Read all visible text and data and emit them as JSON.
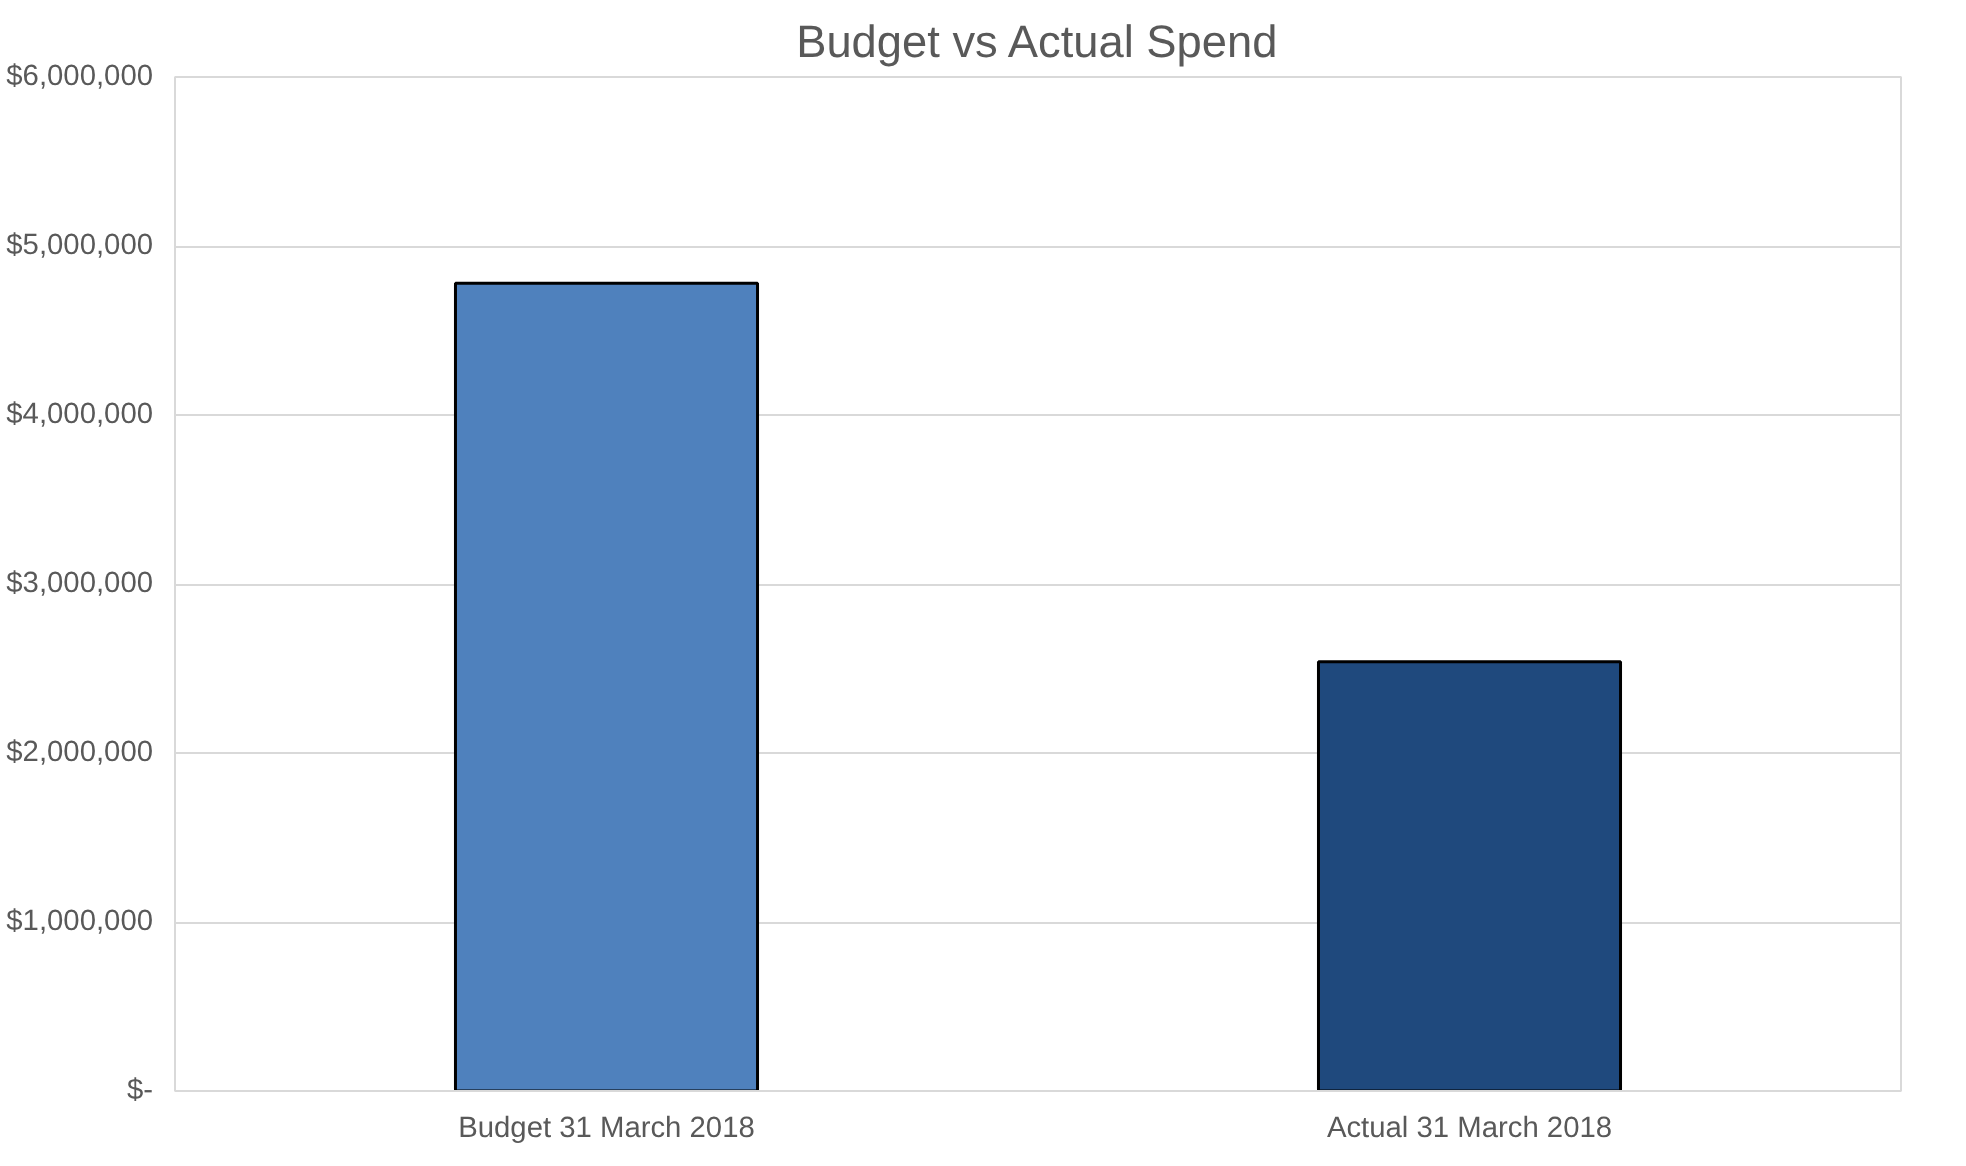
{
  "chart_data": {
    "type": "bar",
    "title": "Budget vs Actual Spend",
    "categories": [
      "Budget 31 March 2018",
      "Actual 31 March 2018"
    ],
    "values": [
      4780000,
      2540000
    ],
    "colors": [
      "#4f81bd",
      "#1f497d"
    ],
    "ylim": [
      0,
      6000000
    ],
    "yticks": [
      {
        "value": 0,
        "label": "$-"
      },
      {
        "value": 1000000,
        "label": "$1,000,000"
      },
      {
        "value": 2000000,
        "label": "$2,000,000"
      },
      {
        "value": 3000000,
        "label": "$3,000,000"
      },
      {
        "value": 4000000,
        "label": "$4,000,000"
      },
      {
        "value": 5000000,
        "label": "$5,000,000"
      },
      {
        "value": 6000000,
        "label": "$6,000,000"
      }
    ],
    "grid": "y"
  }
}
